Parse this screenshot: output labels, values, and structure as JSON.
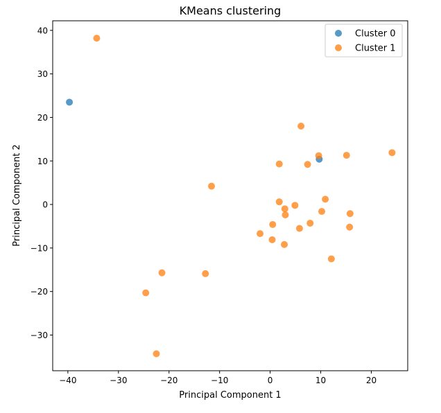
{
  "chart_data": {
    "type": "scatter",
    "title": "KMeans clustering",
    "xlabel": "Principal Component 1",
    "ylabel": "Principal Component 2",
    "xlim": [
      -43,
      27.2
    ],
    "ylim": [
      -38.2,
      42.2
    ],
    "xticks": [
      -40,
      -30,
      -20,
      -10,
      0,
      10,
      20
    ],
    "yticks": [
      -30,
      -20,
      -10,
      0,
      10,
      20,
      30,
      40
    ],
    "grid": false,
    "legend": "top-right",
    "series": [
      {
        "name": "Cluster 0",
        "color": "#1f77b4",
        "points": [
          {
            "x": -39.7,
            "y": 23.5
          },
          {
            "x": 9.7,
            "y": 10.4
          }
        ]
      },
      {
        "name": "Cluster 1",
        "color": "#ff7f0e",
        "points": [
          {
            "x": -34.3,
            "y": 38.2
          },
          {
            "x": 6.1,
            "y": 18.0
          },
          {
            "x": 9.6,
            "y": 11.2
          },
          {
            "x": 15.1,
            "y": 11.3
          },
          {
            "x": 24.1,
            "y": 11.9
          },
          {
            "x": 1.8,
            "y": 9.3
          },
          {
            "x": 7.4,
            "y": 9.2
          },
          {
            "x": -11.6,
            "y": 4.2
          },
          {
            "x": 10.9,
            "y": 1.2
          },
          {
            "x": 1.8,
            "y": 0.6
          },
          {
            "x": 4.9,
            "y": -0.2
          },
          {
            "x": 2.9,
            "y": -1.0
          },
          {
            "x": 10.2,
            "y": -1.6
          },
          {
            "x": 15.8,
            "y": -2.1
          },
          {
            "x": 3.0,
            "y": -2.4
          },
          {
            "x": 0.5,
            "y": -4.6
          },
          {
            "x": 7.9,
            "y": -4.3
          },
          {
            "x": 5.8,
            "y": -5.5
          },
          {
            "x": 15.7,
            "y": -5.2
          },
          {
            "x": -2.0,
            "y": -6.7
          },
          {
            "x": 0.4,
            "y": -8.1
          },
          {
            "x": 2.8,
            "y": -9.2
          },
          {
            "x": 12.1,
            "y": -12.5
          },
          {
            "x": -21.4,
            "y": -15.7
          },
          {
            "x": -12.8,
            "y": -15.9
          },
          {
            "x": -24.6,
            "y": -20.3
          },
          {
            "x": -22.5,
            "y": -34.3
          }
        ]
      }
    ]
  }
}
